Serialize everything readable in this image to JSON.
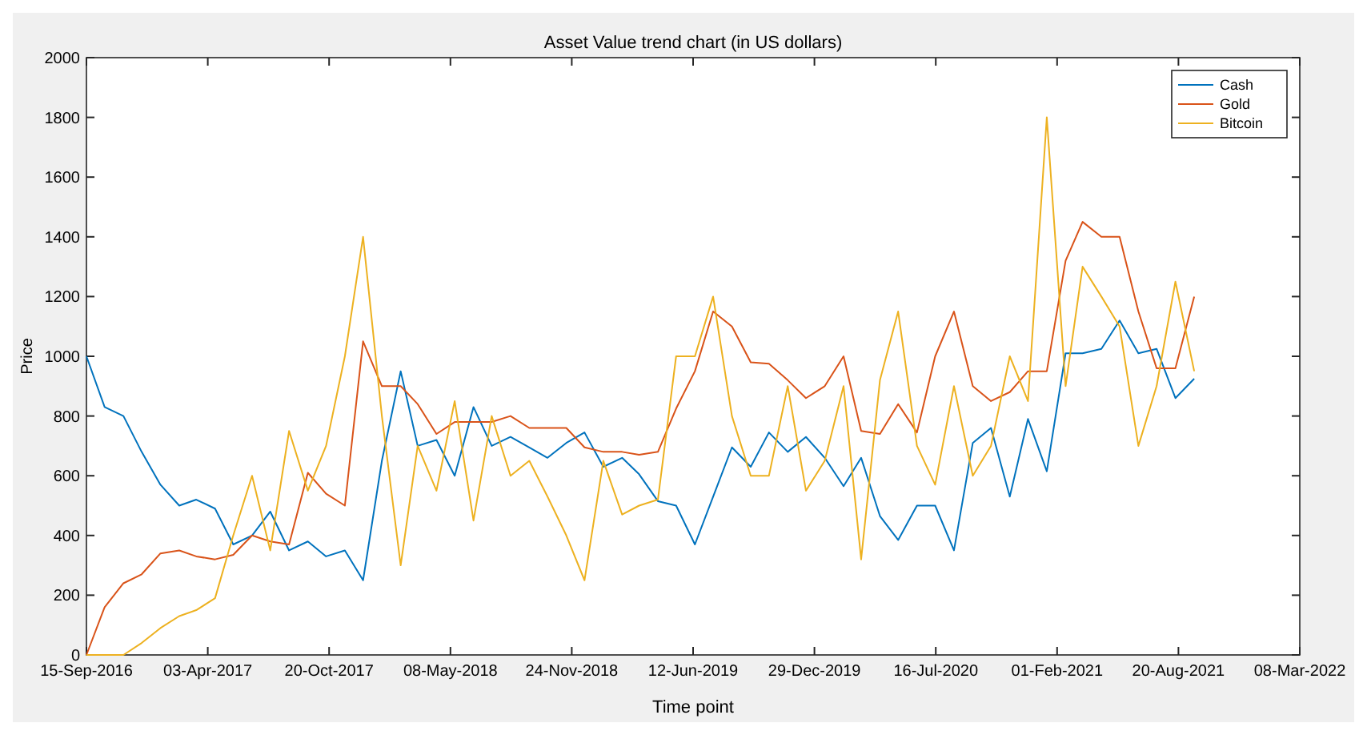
{
  "chart_data": {
    "type": "line",
    "title": "Asset Value trend chart (in US dollars)",
    "xlabel": "Time point",
    "ylabel": "Price",
    "x": [
      "2016-09-15",
      "2016-10-15",
      "2016-11-15",
      "2016-12-15",
      "2017-01-15",
      "2017-02-15",
      "2017-03-15",
      "2017-04-15",
      "2017-05-15",
      "2017-06-15",
      "2017-07-15",
      "2017-08-15",
      "2017-09-15",
      "2017-10-15",
      "2017-11-15",
      "2017-12-15",
      "2018-01-15",
      "2018-02-15",
      "2018-03-15",
      "2018-04-15",
      "2018-05-15",
      "2018-06-15",
      "2018-07-15",
      "2018-08-15",
      "2018-09-15",
      "2018-10-15",
      "2018-11-15",
      "2018-12-15",
      "2019-01-15",
      "2019-02-15",
      "2019-03-15",
      "2019-04-15",
      "2019-05-15",
      "2019-06-15",
      "2019-07-15",
      "2019-08-15",
      "2019-09-15",
      "2019-10-15",
      "2019-11-15",
      "2019-12-15",
      "2020-01-15",
      "2020-02-15",
      "2020-03-15",
      "2020-04-15",
      "2020-05-15",
      "2020-06-15",
      "2020-07-15",
      "2020-08-15",
      "2020-09-15",
      "2020-10-15",
      "2020-11-15",
      "2020-12-15",
      "2021-01-15",
      "2021-02-15",
      "2021-03-15",
      "2021-04-15",
      "2021-05-15",
      "2021-06-15",
      "2021-07-15",
      "2021-08-15",
      "2021-09-15"
    ],
    "series": [
      {
        "name": "Cash",
        "color": "#0072bd",
        "values": [
          1000,
          830,
          800,
          680,
          570,
          500,
          520,
          490,
          370,
          400,
          480,
          350,
          380,
          330,
          350,
          250,
          650,
          950,
          700,
          720,
          600,
          830,
          700,
          730,
          695,
          660,
          710,
          745,
          630,
          660,
          605,
          515,
          500,
          370,
          530,
          695,
          630,
          745,
          680,
          730,
          660,
          565,
          660,
          465,
          385,
          500,
          500,
          350,
          710,
          760,
          530,
          790,
          615,
          1010,
          1010,
          1025,
          1120,
          1010,
          1025,
          860,
          925
        ]
      },
      {
        "name": "Gold",
        "color": "#d95319",
        "values": [
          0,
          160,
          240,
          270,
          340,
          350,
          330,
          320,
          335,
          400,
          380,
          370,
          610,
          540,
          500,
          1050,
          900,
          900,
          840,
          740,
          780,
          780,
          780,
          800,
          760,
          760,
          760,
          695,
          680,
          680,
          670,
          680,
          825,
          950,
          1150,
          1100,
          980,
          975,
          920,
          860,
          900,
          1000,
          750,
          740,
          840,
          745,
          1000,
          1150,
          900,
          850,
          880,
          950,
          950,
          1320,
          1450,
          1400,
          1400,
          1150,
          960,
          960,
          1200
        ]
      },
      {
        "name": "Bitcoin",
        "color": "#edb120",
        "values": [
          0,
          0,
          0,
          40,
          90,
          130,
          150,
          190,
          400,
          600,
          350,
          750,
          550,
          700,
          1000,
          1400,
          800,
          300,
          700,
          550,
          850,
          450,
          800,
          600,
          650,
          530,
          400,
          250,
          650,
          470,
          500,
          520,
          1000,
          1000,
          1200,
          800,
          600,
          600,
          900,
          550,
          650,
          900,
          320,
          920,
          1150,
          700,
          570,
          900,
          600,
          700,
          1000,
          850,
          1800,
          900,
          1300,
          1200,
          1100,
          700,
          900,
          1250,
          950
        ]
      }
    ],
    "xlim": [
      "2016-09-15",
      "2022-03-08"
    ],
    "xticks": [
      {
        "value": "2016-09-15",
        "label": "15-Sep-2016"
      },
      {
        "value": "2017-04-03",
        "label": "03-Apr-2017"
      },
      {
        "value": "2017-10-20",
        "label": "20-Oct-2017"
      },
      {
        "value": "2018-05-08",
        "label": "08-May-2018"
      },
      {
        "value": "2018-11-24",
        "label": "24-Nov-2018"
      },
      {
        "value": "2019-06-12",
        "label": "12-Jun-2019"
      },
      {
        "value": "2019-12-29",
        "label": "29-Dec-2019"
      },
      {
        "value": "2020-07-16",
        "label": "16-Jul-2020"
      },
      {
        "value": "2021-02-01",
        "label": "01-Feb-2021"
      },
      {
        "value": "2021-08-20",
        "label": "20-Aug-2021"
      },
      {
        "value": "2022-03-08",
        "label": "08-Mar-2022"
      }
    ],
    "ylim": [
      0,
      2000
    ],
    "yticks": [
      0,
      200,
      400,
      600,
      800,
      1000,
      1200,
      1400,
      1600,
      1800,
      2000
    ],
    "legend": "top right"
  }
}
